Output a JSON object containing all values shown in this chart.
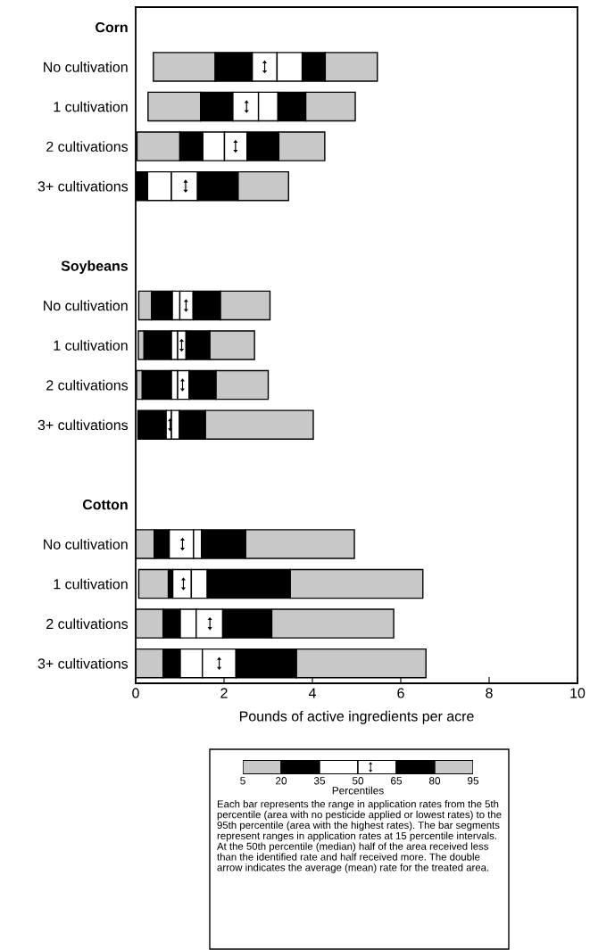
{
  "chart_data": [
    {
      "type": "bar",
      "orientation": "horizontal",
      "xlabel": "Pounds of active ingredients per acre",
      "xlim": [
        0,
        10
      ],
      "xticks": [
        0,
        2,
        4,
        6,
        8,
        10
      ],
      "categories": [
        "Corn",
        "No cultivation",
        "1 cultivation",
        "2 cultivations",
        "3+ cultivations",
        null,
        "Soybeans",
        "No cultivation",
        "1 cultivation",
        "2 cultivations",
        "3+ cultivations",
        null,
        "Cotton",
        "No cultivation",
        "1 cultivation",
        "2 cultivations",
        "3+ cultivations"
      ],
      "series": [
        {
          "color": "#c8c8c8",
          "base": [
            null,
            0.4,
            0.28,
            0.03,
            null,
            null,
            null,
            0.07,
            0.06,
            0.02,
            null,
            null,
            null,
            0,
            0.07,
            0,
            0
          ],
          "values": [
            null,
            1.4,
            1.19,
            0.97,
            null,
            null,
            null,
            0.29,
            0.13,
            0.13,
            null,
            null,
            null,
            0.42,
            0.67,
            0.62,
            0.62
          ]
        },
        {
          "color": "#000000",
          "base": [
            null,
            1.8,
            1.47,
            1.0,
            0,
            null,
            null,
            0.36,
            0.19,
            0.15,
            0.05,
            null,
            null,
            0.42,
            0.74,
            0.62,
            0.62
          ],
          "values": [
            null,
            0.84,
            0.73,
            0.52,
            0.27,
            null,
            null,
            0.47,
            0.62,
            0.66,
            0.64,
            null,
            null,
            0.34,
            0.1,
            0.39,
            0.39
          ]
        },
        {
          "color": "#ffffff",
          "base": [
            null,
            2.64,
            2.2,
            1.52,
            0.27,
            null,
            null,
            0.83,
            0.81,
            0.81,
            0.69,
            null,
            null,
            0.76,
            0.84,
            1.01,
            1.01
          ],
          "values": [
            null,
            0.56,
            0.58,
            0.49,
            0.54,
            null,
            null,
            0.17,
            0.14,
            0.14,
            0.12,
            null,
            null,
            0.55,
            0.42,
            0.36,
            0.5
          ]
        },
        {
          "color": "#ffffff",
          "base": [
            null,
            3.2,
            2.78,
            2.01,
            0.81,
            null,
            null,
            1.0,
            0.95,
            0.95,
            0.81,
            null,
            null,
            1.31,
            1.26,
            1.37,
            1.51
          ],
          "values": [
            null,
            0.57,
            0.44,
            0.51,
            0.59,
            null,
            null,
            0.3,
            0.19,
            0.26,
            0.18,
            null,
            null,
            0.18,
            0.36,
            0.6,
            0.76
          ]
        },
        {
          "color": "#000000",
          "base": [
            null,
            3.77,
            3.22,
            2.52,
            1.4,
            null,
            null,
            1.3,
            1.14,
            1.21,
            0.99,
            null,
            null,
            1.49,
            1.62,
            1.97,
            2.27
          ],
          "values": [
            null,
            0.52,
            0.63,
            0.72,
            0.92,
            null,
            null,
            0.62,
            0.54,
            0.61,
            0.59,
            null,
            null,
            1.0,
            1.88,
            1.11,
            1.37
          ]
        },
        {
          "color": "#c8c8c8",
          "base": [
            null,
            4.29,
            3.85,
            3.24,
            2.32,
            null,
            null,
            1.92,
            1.68,
            1.82,
            1.58,
            null,
            null,
            2.49,
            3.5,
            3.08,
            3.64
          ],
          "values": [
            null,
            1.18,
            1.12,
            1.04,
            1.14,
            null,
            null,
            1.12,
            1.01,
            1.18,
            2.44,
            null,
            null,
            2.46,
            3.0,
            2.76,
            2.93
          ]
        },
        {
          "type": "scatter",
          "color": "#000000",
          "values": [
            null,
            2.92,
            2.51,
            2.26,
            1.13,
            null,
            null,
            1.14,
            1.04,
            1.06,
            0.78,
            null,
            null,
            1.06,
            1.08,
            1.68,
            1.89
          ]
        }
      ]
    },
    {
      "type": "bar",
      "orientation": "horizontal",
      "xlabel": "Percentiles",
      "xlim": [
        5,
        95
      ],
      "xticks": [
        5,
        20,
        35,
        50,
        65,
        80,
        95
      ],
      "tick_labels": "x",
      "categories": [
        null
      ],
      "series": [
        {
          "color": "#c8c8c8",
          "base": [
            5
          ],
          "values": [
            15
          ]
        },
        {
          "color": "#000000",
          "base": [
            20
          ],
          "values": [
            15
          ]
        },
        {
          "color": "#ffffff",
          "base": [
            35
          ],
          "values": [
            15
          ]
        },
        {
          "color": "#ffffff",
          "base": [
            50
          ],
          "values": [
            15
          ]
        },
        {
          "color": "#000000",
          "base": [
            65
          ],
          "values": [
            15
          ]
        },
        {
          "color": "#c8c8c8",
          "base": [
            80
          ],
          "values": [
            15
          ]
        }
      ],
      "annotations": [
        "Each bar represents the range in application rates from the 5th percentile (area with no pesticide applied or lowest rates) to the 95th percentile (area with the highest rates). The bar segments represent ranges in application rates at 15 percentile intervals. At the 50th percentile (median) half of the area received less than the identified rate and half received more. The double arrow indicates the average (mean) rate for the treated area."
      ]
    }
  ]
}
